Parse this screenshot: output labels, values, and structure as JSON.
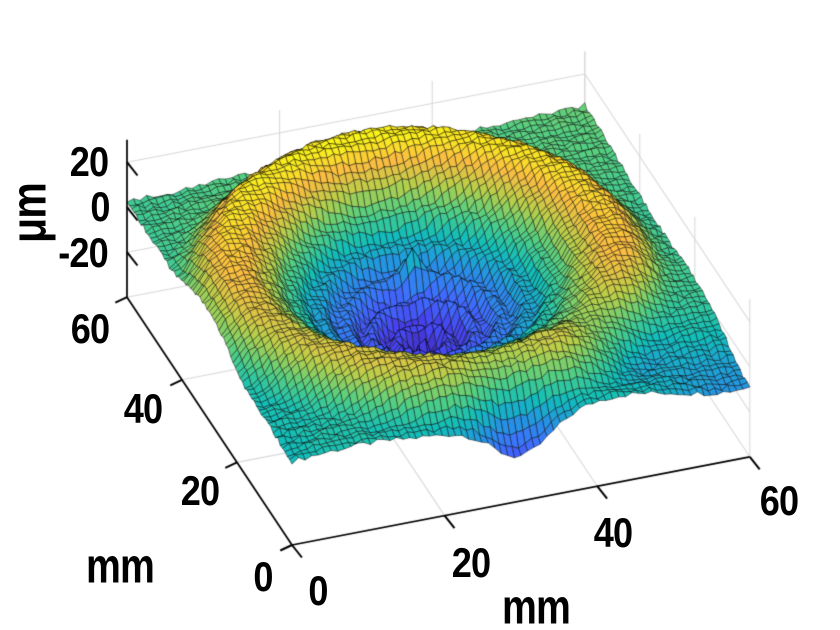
{
  "figure": {
    "background": "#ffffff",
    "kind": "MATLAB-style 3-D surface mesh plot"
  },
  "chart_data": {
    "type": "heatmap",
    "subtype": "3d-surface-mesh",
    "title": "",
    "xlabel": "mm",
    "ylabel": "mm",
    "zlabel": "μm",
    "x_range": [
      0,
      60
    ],
    "y_range": [
      0,
      60
    ],
    "z_range": [
      -40,
      30
    ],
    "x_ticks": [
      0,
      20,
      40,
      60
    ],
    "x_tick_labels": [
      "0",
      "20",
      "40",
      "60"
    ],
    "y_ticks": [
      0,
      20,
      40,
      60
    ],
    "y_tick_labels": [
      "0",
      "20",
      "40",
      "60"
    ],
    "z_ticks": [
      -20,
      0,
      20
    ],
    "z_tick_labels": [
      "-20",
      "0",
      "20"
    ],
    "grid": true,
    "legend": "none",
    "colormap": "parula",
    "colormap_stops": [
      [
        62,
        38,
        168
      ],
      [
        71,
        66,
        240
      ],
      [
        62,
        111,
        255
      ],
      [
        37,
        147,
        227
      ],
      [
        18,
        190,
        185
      ],
      [
        83,
        207,
        130
      ],
      [
        182,
        207,
        74
      ],
      [
        251,
        188,
        65
      ],
      [
        249,
        251,
        21
      ]
    ],
    "mesh_cells": 70,
    "view": {
      "azimuth": -37.5,
      "elevation": 30
    },
    "grid_color": "#d9d9d9",
    "axis_color": "#000000",
    "mesh_edge_color": "rgba(0,0,0,0.82)",
    "surface_model": {
      "units": {
        "xy": "mm",
        "z": "μm"
      },
      "center": [
        28,
        30
      ],
      "ring": {
        "radius": 23.5,
        "width": 7,
        "height": 21,
        "front_back_asym": 0.1
      },
      "basin": {
        "radius": 12.5,
        "depth": -27
      },
      "ripples": {
        "amplitude": 4.2,
        "wavelength": 3.1,
        "extent": 13.5
      },
      "center_spike": {
        "center": [
          30,
          39.5
        ],
        "height": 12,
        "radius": 1.3
      },
      "moat": {
        "radius": 30,
        "width": 3,
        "depth": -5
      },
      "dips": [
        {
          "center": [
            46,
            11
          ],
          "radius": 7,
          "depth": -9
        },
        {
          "center": [
            58,
            2
          ],
          "radius": 9,
          "depth": -7
        },
        {
          "center": [
            30,
            0
          ],
          "radius": 5.5,
          "depth": -18
        }
      ],
      "tilt": {
        "x_per_mm": 0.05,
        "y_per_mm": 0.11
      },
      "waviness_amps": [
        1.3,
        1.0,
        0.8
      ],
      "noise_amp": 1.1
    },
    "description": "Measured height map over a 60×60 mm area: a raised annular rim (~+20 μm, bright yellow, radius ≈ 23 mm) encircles a deep central basin (~−27 μm, dark blue) containing concentric ripples (~3 mm wavelength) and a sharp cyan-tipped spike offset toward the back; the surrounding plane sits near 0 μm (teal-green) with mild warp, random roughness and local depressions at the front-right and front-center edges."
  }
}
